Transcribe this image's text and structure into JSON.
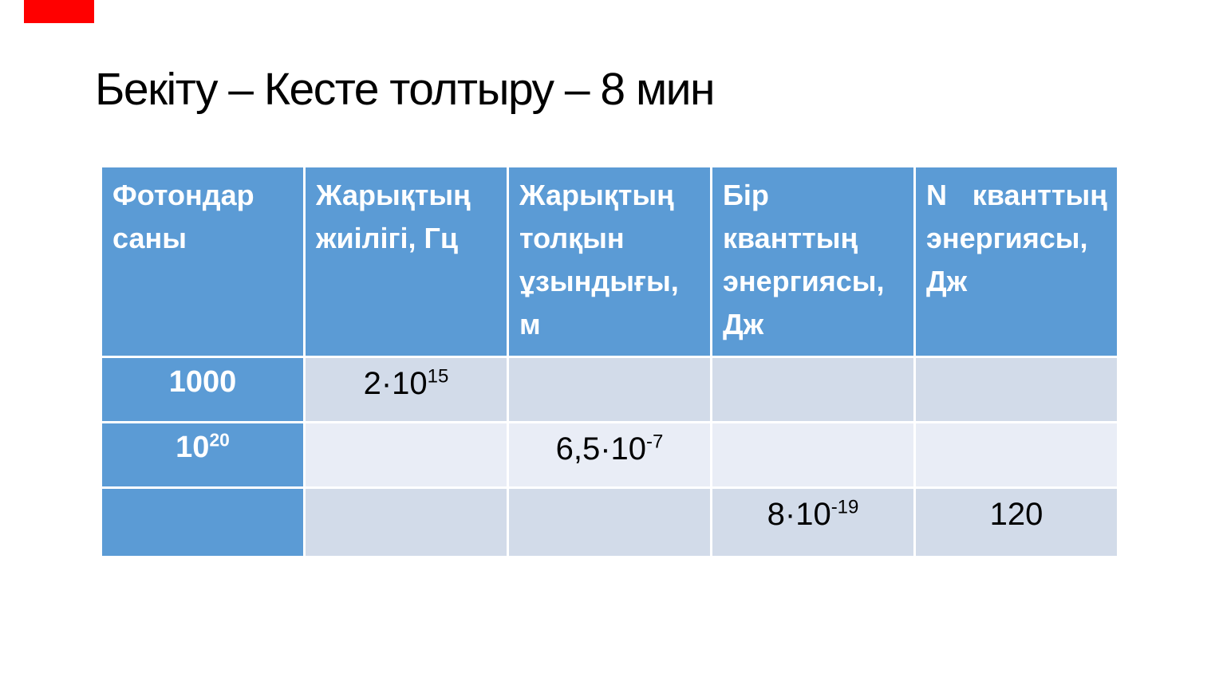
{
  "slide": {
    "title": "Бекіту – Кесте толтыру – 8 мин"
  },
  "colors": {
    "header_blue": "#5b9bd5",
    "band_dark": "#d2dbe9",
    "band_light": "#e9edf6",
    "marker_red": "#ff0000",
    "header_text": "#ffffff",
    "body_text": "#000000",
    "background": "#ffffff"
  },
  "table": {
    "headers": [
      "Фотондар саны",
      "Жарықтың жиілігі, Гц",
      "Жарықтың толқын ұзындығы, м",
      "Бір кванттың энергиясы, Дж",
      "N кванттың энергиясы, Дж"
    ],
    "rows": [
      {
        "label": {
          "text": "1000"
        },
        "cells": [
          {
            "text": "2·10",
            "sup": "15"
          },
          {
            "text": ""
          },
          {
            "text": ""
          },
          {
            "text": ""
          }
        ]
      },
      {
        "label": {
          "text": "10",
          "sup": "20"
        },
        "cells": [
          {
            "text": ""
          },
          {
            "text": "6,5·10",
            "sup": "-7"
          },
          {
            "text": ""
          },
          {
            "text": ""
          }
        ]
      },
      {
        "label": {
          "text": ""
        },
        "cells": [
          {
            "text": ""
          },
          {
            "text": ""
          },
          {
            "text": "8·10",
            "sup": "-19"
          },
          {
            "text": "120"
          }
        ]
      }
    ]
  }
}
